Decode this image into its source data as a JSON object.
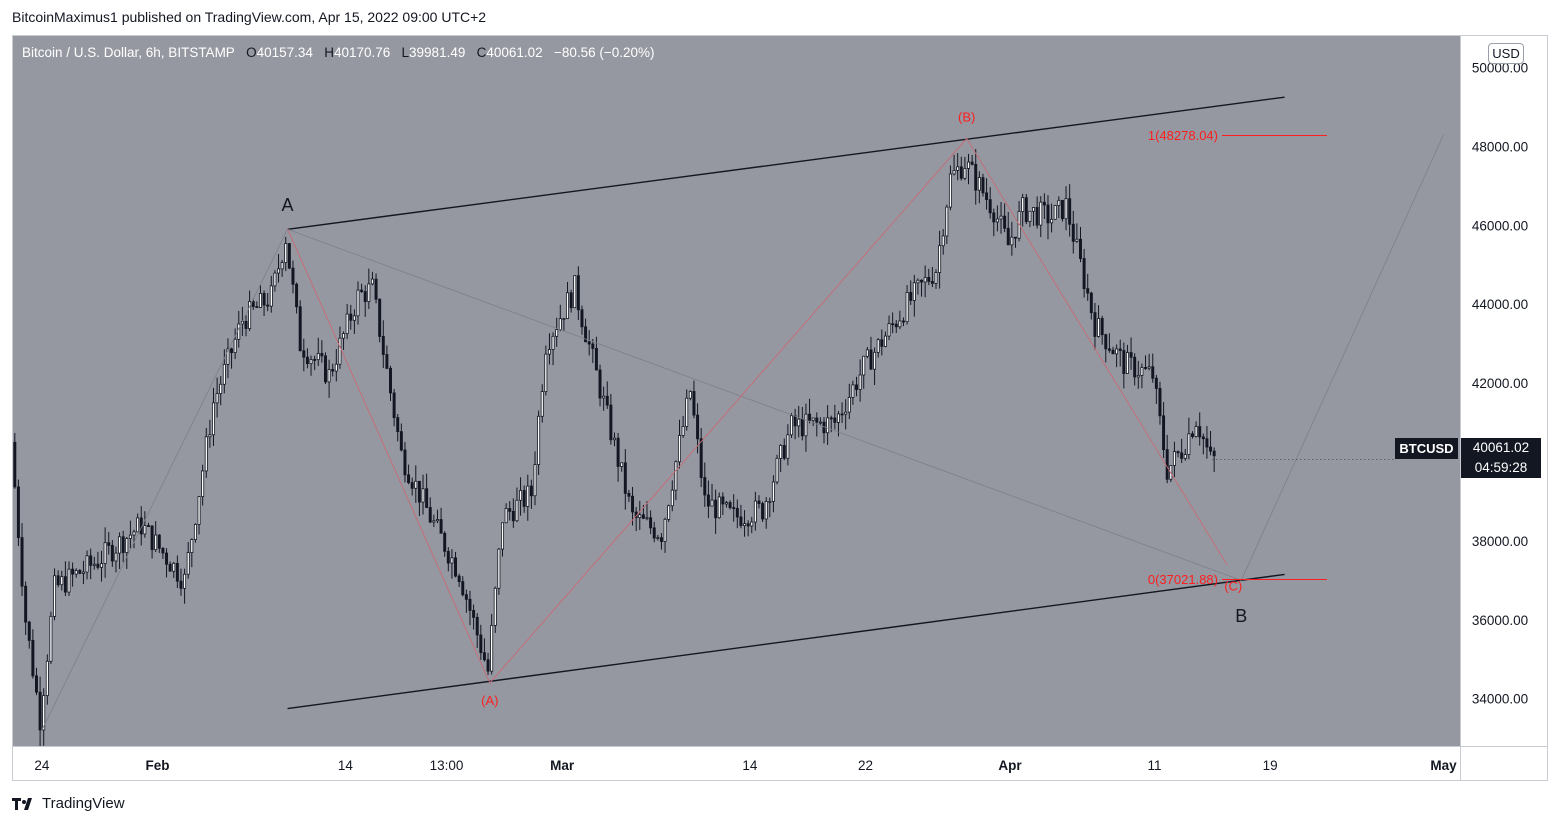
{
  "header": {
    "published_line": "BitcoinMaximus1 published on TradingView.com, Apr 15, 2022 09:00 UTC+2"
  },
  "legend": {
    "symbol": "Bitcoin / U.S. Dollar, 6h, BITSTAMP",
    "o_key": "O",
    "o_val": "40157.34",
    "h_key": "H",
    "h_val": "40170.76",
    "l_key": "L",
    "l_val": "39981.49",
    "c_key": "C",
    "c_val": "40061.02",
    "change": "−80.56 (−0.20%)"
  },
  "currency_badge": "USD",
  "ticker_tag": "BTCUSD",
  "last_price": {
    "price": "40061.02",
    "countdown": "04:59:28"
  },
  "branding": {
    "name": "TradingView"
  },
  "colors": {
    "background": "#9598a1",
    "wave": "#ff1e1e",
    "channel": "#131722",
    "up": "#ffffff",
    "down": "#131722"
  },
  "chart_data": {
    "type": "candlestick",
    "symbol": "BTCUSD",
    "interval": "6h",
    "ylim": [
      32800,
      50800
    ],
    "y_ticks": [
      "50000.00",
      "48000.00",
      "46000.00",
      "44000.00",
      "42000.00",
      "40000.00",
      "38000.00",
      "36000.00",
      "34000.00"
    ],
    "x_ticks": [
      "24",
      "Feb",
      "14",
      "13:00",
      "Mar",
      "14",
      "22",
      "Apr",
      "11",
      "19",
      "May"
    ],
    "price_path": [
      {
        "d": "2022-01-22",
        "p": 40500
      },
      {
        "d": "2022-01-23",
        "p": 36000
      },
      {
        "d": "2022-01-24",
        "p": 33500
      },
      {
        "d": "2022-01-25",
        "p": 36800
      },
      {
        "d": "2022-01-28",
        "p": 37500
      },
      {
        "d": "2022-01-31",
        "p": 38400
      },
      {
        "d": "2022-02-03",
        "p": 37000
      },
      {
        "d": "2022-02-05",
        "p": 41500
      },
      {
        "d": "2022-02-07",
        "p": 43600
      },
      {
        "d": "2022-02-09",
        "p": 44200
      },
      {
        "d": "2022-02-10",
        "p": 45700
      },
      {
        "d": "2022-02-11",
        "p": 43000
      },
      {
        "d": "2022-02-13",
        "p": 42200
      },
      {
        "d": "2022-02-15",
        "p": 44200
      },
      {
        "d": "2022-02-16",
        "p": 44400
      },
      {
        "d": "2022-02-18",
        "p": 40200
      },
      {
        "d": "2022-02-20",
        "p": 38600
      },
      {
        "d": "2022-02-22",
        "p": 37200
      },
      {
        "d": "2022-02-24",
        "p": 34700
      },
      {
        "d": "2022-02-25",
        "p": 38600
      },
      {
        "d": "2022-02-27",
        "p": 39200
      },
      {
        "d": "2022-02-28",
        "p": 43000
      },
      {
        "d": "2022-03-02",
        "p": 44400
      },
      {
        "d": "2022-03-04",
        "p": 41500
      },
      {
        "d": "2022-03-06",
        "p": 38600
      },
      {
        "d": "2022-03-08",
        "p": 38200
      },
      {
        "d": "2022-03-10",
        "p": 41800
      },
      {
        "d": "2022-03-11",
        "p": 39000
      },
      {
        "d": "2022-03-13",
        "p": 38600
      },
      {
        "d": "2022-03-15",
        "p": 38800
      },
      {
        "d": "2022-03-17",
        "p": 40900
      },
      {
        "d": "2022-03-20",
        "p": 41000
      },
      {
        "d": "2022-03-22",
        "p": 42400
      },
      {
        "d": "2022-03-25",
        "p": 44000
      },
      {
        "d": "2022-03-27",
        "p": 44900
      },
      {
        "d": "2022-03-28",
        "p": 47200
      },
      {
        "d": "2022-03-29",
        "p": 47600
      },
      {
        "d": "2022-03-31",
        "p": 46400
      },
      {
        "d": "2022-04-01",
        "p": 45500
      },
      {
        "d": "2022-04-02",
        "p": 46400
      },
      {
        "d": "2022-04-04",
        "p": 46200
      },
      {
        "d": "2022-04-05",
        "p": 46500
      },
      {
        "d": "2022-04-07",
        "p": 43500
      },
      {
        "d": "2022-04-09",
        "p": 42500
      },
      {
        "d": "2022-04-11",
        "p": 42200
      },
      {
        "d": "2022-04-12",
        "p": 39800
      },
      {
        "d": "2022-04-13",
        "p": 40300
      },
      {
        "d": "2022-04-14",
        "p": 41100
      },
      {
        "d": "2022-04-15",
        "p": 40061
      }
    ],
    "pivots": [
      {
        "label": "A",
        "date": "2022-02-10",
        "price": 45800,
        "color": "#131722"
      },
      {
        "label": "(A)",
        "date": "2022-02-24",
        "price": 34400,
        "color": "#ff1e1e"
      },
      {
        "label": "(B)",
        "date": "2022-03-29",
        "price": 48200,
        "color": "#ff1e1e"
      },
      {
        "label": "(C)",
        "date": "2022-04-17",
        "price": 37000,
        "color": "#ff1e1e"
      },
      {
        "label": "B",
        "date": "2022-04-17",
        "price": 36600,
        "color": "#131722"
      }
    ],
    "fib_levels": [
      {
        "label": "1(48278.04)",
        "price": 48278.04
      },
      {
        "label": "0(37021.88)",
        "price": 37021.88
      }
    ],
    "channel": {
      "upper": [
        {
          "date": "2022-02-10",
          "price": 45900
        },
        {
          "date": "2022-04-20",
          "price": 49250
        }
      ],
      "lower": [
        {
          "date": "2022-02-10",
          "price": 33750
        },
        {
          "date": "2022-04-20",
          "price": 37150
        }
      ]
    },
    "last_price": 40061.02
  }
}
